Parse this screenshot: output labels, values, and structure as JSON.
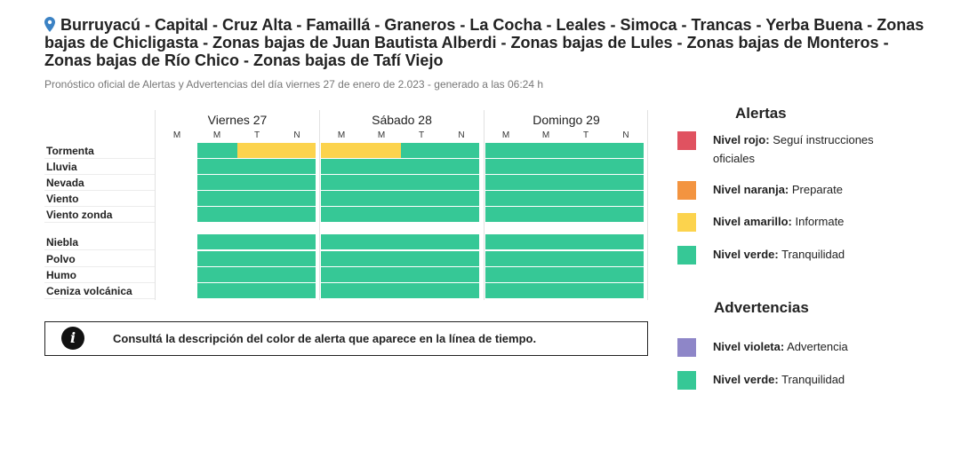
{
  "header": {
    "title": "Burruyacú - Capital - Cruz Alta - Famaillá - Graneros - La Cocha - Leales - Simoca - Trancas - Yerba Buena - Zonas bajas de Chicligasta - Zonas bajas de Juan Bautista Alberdi - Zonas bajas de Lules - Zonas bajas de Monteros - Zonas bajas de Río Chico - Zonas bajas de Tafí Viejo",
    "subtitle": "Pronóstico oficial de Alertas y Advertencias del día viernes 27 de enero de 2.023 - generado a las 06:24 h",
    "icon": "location-pin-icon",
    "pin_color": "#3b82c4"
  },
  "timeline": {
    "days": [
      "Viernes 27",
      "Sábado 28",
      "Domingo 29"
    ],
    "periods": [
      "M",
      "M",
      "T",
      "N"
    ],
    "rows": [
      {
        "label": "Tormenta",
        "levels": [
          "none",
          "verde",
          "amarillo",
          "amarillo",
          "amarillo",
          "amarillo",
          "verde",
          "verde",
          "verde",
          "verde",
          "verde",
          "verde"
        ]
      },
      {
        "label": "Lluvia",
        "levels": [
          "none",
          "verde",
          "verde",
          "verde",
          "verde",
          "verde",
          "verde",
          "verde",
          "verde",
          "verde",
          "verde",
          "verde"
        ]
      },
      {
        "label": "Nevada",
        "levels": [
          "none",
          "verde",
          "verde",
          "verde",
          "verde",
          "verde",
          "verde",
          "verde",
          "verde",
          "verde",
          "verde",
          "verde"
        ]
      },
      {
        "label": "Viento",
        "levels": [
          "none",
          "verde",
          "verde",
          "verde",
          "verde",
          "verde",
          "verde",
          "verde",
          "verde",
          "verde",
          "verde",
          "verde"
        ]
      },
      {
        "label": "Viento zonda",
        "levels": [
          "none",
          "verde",
          "verde",
          "verde",
          "verde",
          "verde",
          "verde",
          "verde",
          "verde",
          "verde",
          "verde",
          "verde"
        ]
      },
      {
        "label": "Niebla",
        "levels": [
          "none",
          "verde",
          "verde",
          "verde",
          "verde",
          "verde",
          "verde",
          "verde",
          "verde",
          "verde",
          "verde",
          "verde"
        ]
      },
      {
        "label": "Polvo",
        "levels": [
          "none",
          "verde",
          "verde",
          "verde",
          "verde",
          "verde",
          "verde",
          "verde",
          "verde",
          "verde",
          "verde",
          "verde"
        ]
      },
      {
        "label": "Humo",
        "levels": [
          "none",
          "verde",
          "verde",
          "verde",
          "verde",
          "verde",
          "verde",
          "verde",
          "verde",
          "verde",
          "verde",
          "verde"
        ]
      },
      {
        "label": "Ceniza volcánica",
        "levels": [
          "none",
          "verde",
          "verde",
          "verde",
          "verde",
          "verde",
          "verde",
          "verde",
          "verde",
          "verde",
          "verde",
          "verde"
        ]
      }
    ]
  },
  "info": {
    "icon": "info-icon",
    "text": "Consultá la descripción del color de alerta que aparece en la línea de tiempo."
  },
  "legend": {
    "alertas_title": "Alertas",
    "alertas": [
      {
        "name": "Nivel rojo:",
        "desc": "Seguí instrucciones oficiales",
        "color": "#e05260"
      },
      {
        "name": "Nivel naranja:",
        "desc": "Preparate",
        "color": "#f39440"
      },
      {
        "name": "Nivel amarillo:",
        "desc": "Informate",
        "color": "#fcd34d"
      },
      {
        "name": "Nivel verde:",
        "desc": "Tranquilidad",
        "color": "#36c896"
      }
    ],
    "advertencias_title": "Advertencias",
    "advertencias": [
      {
        "name": "Nivel violeta:",
        "desc": "Advertencia",
        "color": "#8e86c8"
      },
      {
        "name": "Nivel verde:",
        "desc": "Tranquilidad",
        "color": "#36c896"
      }
    ]
  }
}
